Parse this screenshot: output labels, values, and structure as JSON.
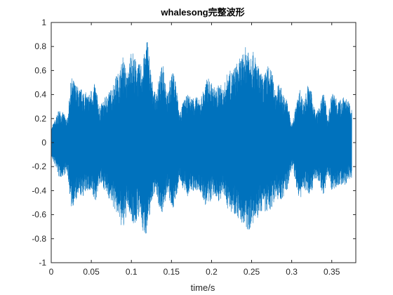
{
  "chart_data": {
    "type": "line",
    "title": "whalesong完整波形",
    "xlabel": "time/s",
    "ylabel": "",
    "xlim": [
      0,
      0.38
    ],
    "ylim": [
      -1,
      1
    ],
    "xticks": [
      0,
      0.05,
      0.1,
      0.15,
      0.2,
      0.25,
      0.3,
      0.35
    ],
    "xtick_labels": [
      "0",
      "0.05",
      "0.1",
      "0.15",
      "0.2",
      "0.25",
      "0.3",
      "0.35"
    ],
    "yticks": [
      -1,
      -0.8,
      -0.6,
      -0.4,
      -0.2,
      0,
      0.2,
      0.4,
      0.6,
      0.8,
      1
    ],
    "ytick_labels": [
      "-1",
      "-0.8",
      "-0.6",
      "-0.4",
      "-0.2",
      "0",
      "0.2",
      "0.4",
      "0.6",
      "0.8",
      "1"
    ],
    "grid": false,
    "box": true,
    "series": [
      {
        "color": "#0072BD",
        "envelope": {
          "t": [
            0,
            0.005,
            0.01,
            0.015,
            0.02,
            0.025,
            0.03,
            0.035,
            0.04,
            0.045,
            0.05,
            0.055,
            0.06,
            0.065,
            0.07,
            0.075,
            0.08,
            0.085,
            0.09,
            0.095,
            0.1,
            0.105,
            0.11,
            0.115,
            0.12,
            0.125,
            0.13,
            0.135,
            0.14,
            0.145,
            0.15,
            0.155,
            0.16,
            0.165,
            0.17,
            0.175,
            0.18,
            0.185,
            0.19,
            0.195,
            0.2,
            0.205,
            0.21,
            0.215,
            0.22,
            0.225,
            0.23,
            0.235,
            0.24,
            0.245,
            0.25,
            0.255,
            0.26,
            0.265,
            0.27,
            0.275,
            0.28,
            0.285,
            0.29,
            0.295,
            0.3,
            0.305,
            0.31,
            0.315,
            0.32,
            0.325,
            0.33,
            0.335,
            0.34,
            0.345,
            0.35,
            0.355,
            0.36,
            0.365,
            0.37,
            0.375
          ],
          "upper": [
            0.12,
            0.2,
            0.28,
            0.25,
            0.2,
            0.55,
            0.5,
            0.45,
            0.45,
            0.4,
            0.45,
            0.5,
            0.3,
            0.35,
            0.42,
            0.45,
            0.55,
            0.6,
            0.73,
            0.55,
            0.8,
            0.7,
            0.65,
            0.7,
            0.9,
            0.55,
            0.4,
            0.55,
            0.7,
            0.4,
            0.6,
            0.55,
            0.25,
            0.35,
            0.4,
            0.38,
            0.4,
            0.35,
            0.45,
            0.55,
            0.5,
            0.45,
            0.5,
            0.45,
            0.6,
            0.6,
            0.65,
            0.7,
            0.75,
            0.85,
            0.78,
            0.72,
            0.6,
            0.55,
            0.65,
            0.6,
            0.45,
            0.5,
            0.4,
            0.35,
            0.15,
            0.3,
            0.45,
            0.35,
            0.48,
            0.42,
            0.25,
            0.3,
            0.45,
            0.2,
            0.42,
            0.4,
            0.35,
            0.42,
            0.35,
            0.3
          ],
          "lower": [
            -0.12,
            -0.2,
            -0.3,
            -0.28,
            -0.25,
            -0.55,
            -0.5,
            -0.45,
            -0.45,
            -0.4,
            -0.45,
            -0.5,
            -0.35,
            -0.38,
            -0.45,
            -0.5,
            -0.58,
            -0.65,
            -0.75,
            -0.55,
            -0.65,
            -0.7,
            -0.6,
            -0.78,
            -0.75,
            -0.5,
            -0.4,
            -0.55,
            -0.6,
            -0.4,
            -0.58,
            -0.5,
            -0.3,
            -0.4,
            -0.45,
            -0.4,
            -0.42,
            -0.4,
            -0.5,
            -0.55,
            -0.48,
            -0.45,
            -0.5,
            -0.45,
            -0.55,
            -0.58,
            -0.6,
            -0.65,
            -0.7,
            -0.75,
            -0.7,
            -0.68,
            -0.6,
            -0.55,
            -0.62,
            -0.55,
            -0.45,
            -0.5,
            -0.45,
            -0.4,
            -0.2,
            -0.35,
            -0.5,
            -0.38,
            -0.45,
            -0.4,
            -0.3,
            -0.35,
            -0.45,
            -0.25,
            -0.4,
            -0.38,
            -0.35,
            -0.38,
            -0.32,
            -0.3
          ]
        }
      }
    ]
  }
}
